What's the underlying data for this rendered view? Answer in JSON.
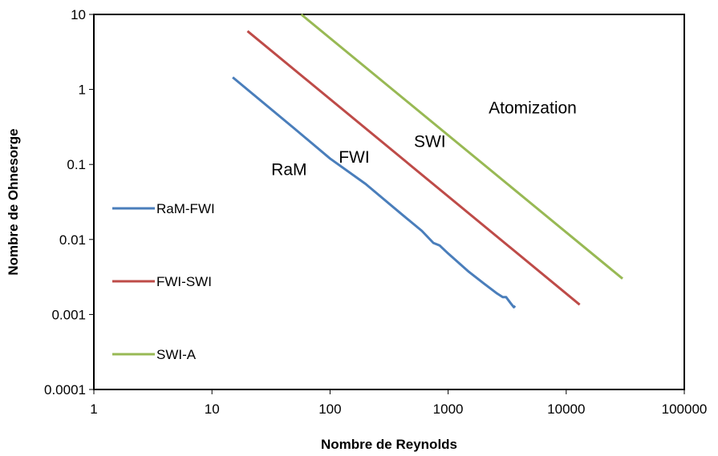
{
  "chart_data": {
    "type": "line",
    "title": "",
    "xlabel": "Nombre de Reynolds",
    "ylabel": "Nombre de Ohnesorge",
    "x_scale": "log",
    "y_scale": "log",
    "xlim": [
      1,
      100000
    ],
    "ylim": [
      0.0001,
      10
    ],
    "x_ticks": [
      {
        "value": 1,
        "label": "1"
      },
      {
        "value": 10,
        "label": "10"
      },
      {
        "value": 100,
        "label": "100"
      },
      {
        "value": 1000,
        "label": "1000"
      },
      {
        "value": 10000,
        "label": "10000"
      },
      {
        "value": 100000,
        "label": "100000"
      }
    ],
    "y_ticks": [
      {
        "value": 0.0001,
        "label": "0.0001"
      },
      {
        "value": 0.001,
        "label": "0.001"
      },
      {
        "value": 0.01,
        "label": "0.01"
      },
      {
        "value": 0.1,
        "label": "0.1"
      },
      {
        "value": 1,
        "label": "1"
      },
      {
        "value": 10,
        "label": "10"
      }
    ],
    "grid": false,
    "legend_position": "left",
    "series": [
      {
        "name": "RaM-FWI",
        "color": "#4a7ebb",
        "points": [
          [
            15,
            1.45
          ],
          [
            50,
            0.3
          ],
          [
            100,
            0.12
          ],
          [
            200,
            0.055
          ],
          [
            400,
            0.022
          ],
          [
            600,
            0.013
          ],
          [
            750,
            0.009
          ],
          [
            850,
            0.0083
          ],
          [
            1000,
            0.0065
          ],
          [
            1500,
            0.0037
          ],
          [
            2000,
            0.0026
          ],
          [
            2600,
            0.0019
          ],
          [
            2900,
            0.0017
          ],
          [
            3100,
            0.0017
          ],
          [
            3400,
            0.0014
          ],
          [
            3600,
            0.00125
          ],
          [
            3700,
            0.0013
          ]
        ]
      },
      {
        "name": "FWI-SWI",
        "color": "#be4b48",
        "points": [
          [
            20,
            6
          ],
          [
            13000,
            0.00135
          ]
        ]
      },
      {
        "name": "SWI-A",
        "color": "#98b954",
        "points": [
          [
            57,
            10
          ],
          [
            30000,
            0.003
          ]
        ]
      }
    ],
    "annotations": [
      {
        "text": "RaM",
        "x": 45,
        "y": 0.072
      },
      {
        "text": "FWI",
        "x": 160,
        "y": 0.105
      },
      {
        "text": "SWI",
        "x": 700,
        "y": 0.17
      },
      {
        "text": "Atomization",
        "x": 5200,
        "y": 0.48
      }
    ]
  }
}
